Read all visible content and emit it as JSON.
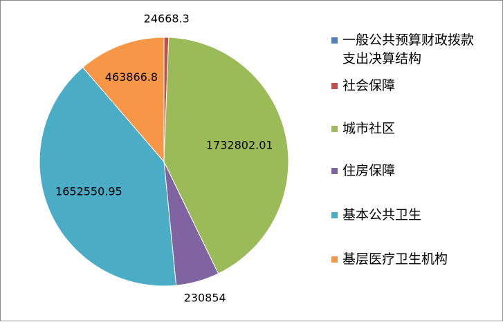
{
  "chart_data": {
    "type": "pie",
    "title": "",
    "start_angle_deg": 0,
    "direction": "clockwise",
    "legend_position": "right",
    "slices": [
      {
        "label": "一般公共预算财政拨款\n支出决算结构",
        "value": null,
        "color": "#4F81BD"
      },
      {
        "label": "社会保障",
        "value": 24668.3,
        "data_label": "24668.3",
        "color": "#C0504D"
      },
      {
        "label": "城市社区",
        "value": 1732802.01,
        "data_label": "1732802.01",
        "color": "#9BBB59"
      },
      {
        "label": "住房保障",
        "value": 230854,
        "data_label": "230854",
        "color": "#8064A2"
      },
      {
        "label": "基本公共卫生",
        "value": 1652550.95,
        "data_label": "1652550.95",
        "color": "#4BACC6"
      },
      {
        "label": "基层医疗卫生机构",
        "value": 463866.8,
        "data_label": "463866.8",
        "color": "#F79646"
      }
    ]
  }
}
